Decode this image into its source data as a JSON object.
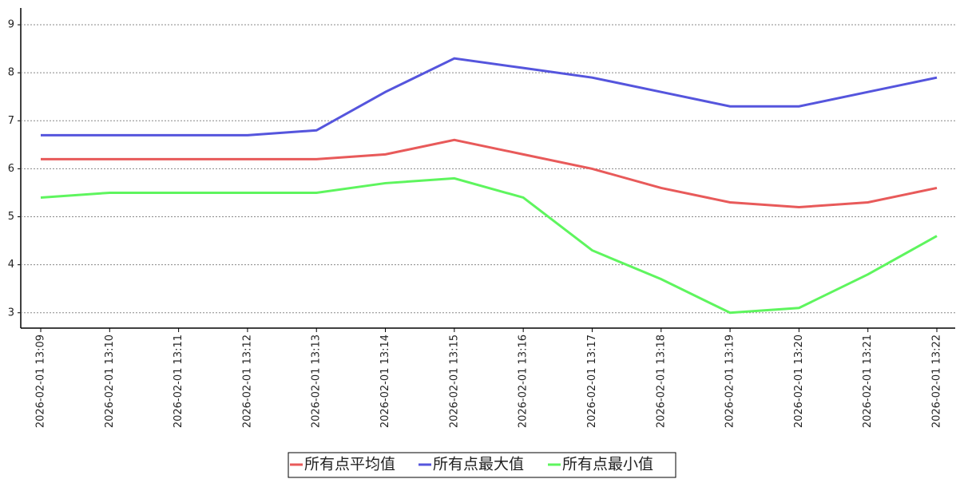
{
  "chart_data": {
    "type": "line",
    "categories": [
      "2026-02-01 13:09",
      "2026-02-01 13:10",
      "2026-02-01 13:11",
      "2026-02-01 13:12",
      "2026-02-01 13:13",
      "2026-02-01 13:14",
      "2026-02-01 13:15",
      "2026-02-01 13:16",
      "2026-02-01 13:17",
      "2026-02-01 13:18",
      "2026-02-01 13:19",
      "2026-02-01 13:20",
      "2026-02-01 13:21",
      "2026-02-01 13:22"
    ],
    "series": [
      {
        "name": "所有点平均值",
        "color": "#e85a5a",
        "values": [
          6.2,
          6.2,
          6.2,
          6.2,
          6.2,
          6.3,
          6.6,
          6.3,
          6.0,
          5.6,
          5.3,
          5.2,
          5.3,
          5.6
        ]
      },
      {
        "name": "所有点最大值",
        "color": "#5555dd",
        "values": [
          6.7,
          6.7,
          6.7,
          6.7,
          6.8,
          7.6,
          8.3,
          8.1,
          7.9,
          7.6,
          7.3,
          7.3,
          7.6,
          7.9
        ]
      },
      {
        "name": "所有点最小值",
        "color": "#5ef55e",
        "values": [
          5.4,
          5.5,
          5.5,
          5.5,
          5.5,
          5.7,
          5.8,
          5.4,
          4.3,
          3.7,
          3.0,
          3.1,
          3.8,
          4.6
        ]
      }
    ],
    "ylim": [
      2.68,
      9.35
    ],
    "yticks": [
      3,
      4,
      5,
      6,
      7,
      8,
      9
    ],
    "grid": true,
    "legend": "bottom"
  }
}
